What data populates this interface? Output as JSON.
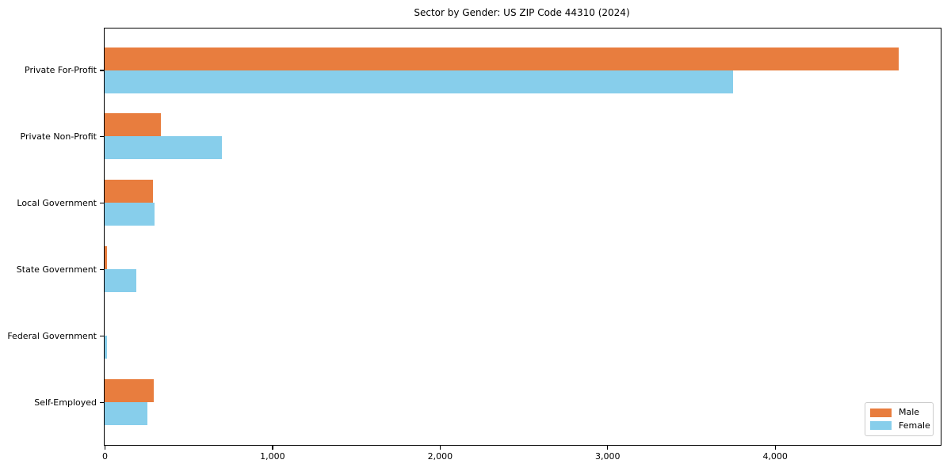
{
  "title": "Sector by Gender: US ZIP Code 44310 (2024)",
  "chart_data": {
    "type": "bar",
    "orientation": "horizontal",
    "title": "Sector by Gender: US ZIP Code 44310 (2024)",
    "categories": [
      "Private For-Profit",
      "Private Non-Profit",
      "Local Government",
      "State Government",
      "Federal Government",
      "Self-Employed"
    ],
    "series": [
      {
        "name": "Male",
        "color": "#E87D3E",
        "values": [
          4740,
          335,
          290,
          13,
          0,
          295
        ]
      },
      {
        "name": "Female",
        "color": "#87CEEB",
        "values": [
          3750,
          700,
          300,
          190,
          15,
          255
        ]
      }
    ],
    "xlabel": "",
    "ylabel": "",
    "xlim": [
      0,
      4990
    ],
    "xticks": [
      0,
      1000,
      2000,
      3000,
      4000
    ],
    "xtick_labels": [
      "0",
      "1,000",
      "2,000",
      "3,000",
      "4,000"
    ],
    "grid": false,
    "legend": {
      "position": "lower right",
      "entries": [
        "Male",
        "Female"
      ]
    },
    "axis_color": "#000000"
  }
}
